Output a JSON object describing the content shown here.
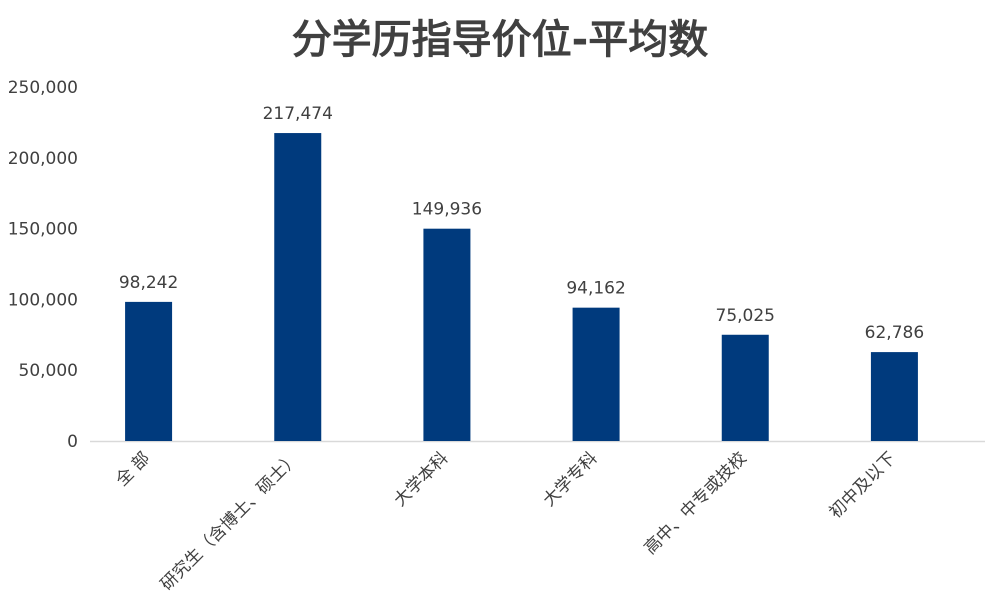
{
  "chart_data": {
    "type": "bar",
    "title": "分学历指导价位-平均数",
    "categories": [
      "全 部",
      "研究生（含博士、硕士）",
      "大学本科",
      "大学专科",
      "高中、中专或技校",
      "初中及以下"
    ],
    "values": [
      98242,
      217474,
      149936,
      94162,
      75025,
      62786
    ],
    "data_labels": [
      "98,242",
      "217,474",
      "149,936",
      "94,162",
      "75,025",
      "62,786"
    ],
    "yticks": [
      0,
      50000,
      100000,
      150000,
      200000,
      250000
    ],
    "ytick_labels": [
      "0",
      "50,000",
      "100,000",
      "150,000",
      "200,000",
      "250,000"
    ],
    "ylim": [
      0,
      250000
    ],
    "grid": false,
    "legend": "none",
    "bar_color": "#003A7D",
    "axis_color": "#D9D9D9"
  }
}
